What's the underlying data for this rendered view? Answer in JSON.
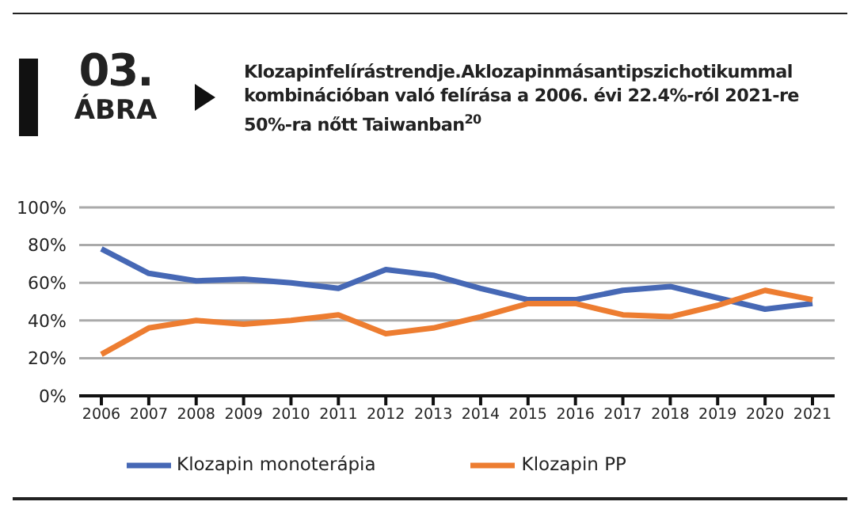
{
  "chart_data": {
    "type": "line",
    "title": "Klozapinfelírástrendje.Aklozapinmásantipszichotikummal kombinációban való felírása a 2006. évi 22.4%-ról 2021-re 50%-ra nőtt Taiwanban$^{20}$",
    "annotations": [
      "03.",
      "ÁBRA"
    ],
    "categories": [
      "2006",
      "2007",
      "2008",
      "2009",
      "2010",
      "2011",
      "2012",
      "2013",
      "2014",
      "2015",
      "2016",
      "2017",
      "2018",
      "2019",
      "2020",
      "2021"
    ],
    "series": [
      {
        "name": "Klozapin monoterápia",
        "color": "#4668b5",
        "values": [
          78,
          65,
          61,
          62,
          60,
          57,
          67,
          64,
          57,
          51,
          51,
          56,
          58,
          52,
          46,
          49
        ]
      },
      {
        "name": "Klozapin PP",
        "color": "#ed7d31",
        "values": [
          22,
          36,
          40,
          38,
          40,
          43,
          33,
          36,
          42,
          49,
          49,
          43,
          42,
          48,
          56,
          51
        ]
      }
    ],
    "ylim": [
      0,
      100
    ],
    "yticks": [
      {
        "value": 0,
        "label": "0%"
      },
      {
        "value": 20,
        "label": "20%"
      },
      {
        "value": 40,
        "label": "40%"
      },
      {
        "value": 60,
        "label": "60%"
      },
      {
        "value": 80,
        "label": "80%"
      },
      {
        "value": 100,
        "label": "100%"
      }
    ],
    "grid": "y",
    "legend": "bottom",
    "marker": "none",
    "line_style": "solid"
  }
}
